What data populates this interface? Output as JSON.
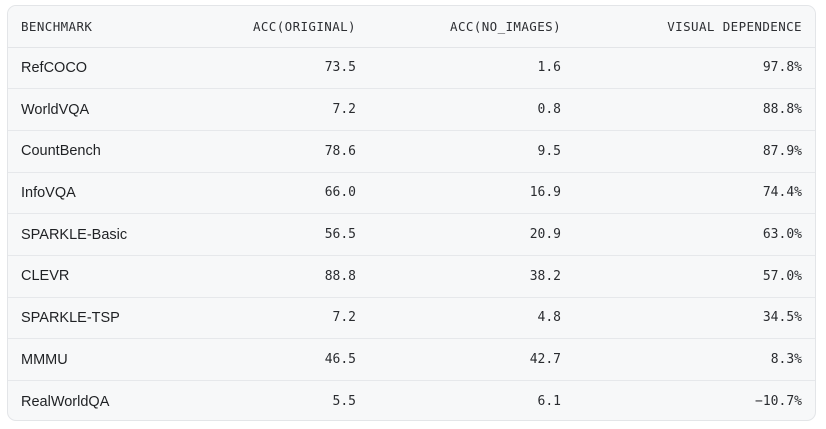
{
  "table": {
    "headers": {
      "benchmark": "BENCHMARK",
      "acc_original": "ACC(ORIGINAL)",
      "acc_no_images": "ACC(NO_IMAGES)",
      "visual_dependence": "VISUAL DEPENDENCE"
    },
    "rows": [
      {
        "benchmark": "RefCOCO",
        "acc_original": "73.5",
        "acc_no_images": "1.6",
        "visual_dependence": "97.8%",
        "tone": "high"
      },
      {
        "benchmark": "WorldVQA",
        "acc_original": "7.2",
        "acc_no_images": "0.8",
        "visual_dependence": "88.8%",
        "tone": "high"
      },
      {
        "benchmark": "CountBench",
        "acc_original": "78.6",
        "acc_no_images": "9.5",
        "visual_dependence": "87.9%",
        "tone": "high"
      },
      {
        "benchmark": "InfoVQA",
        "acc_original": "66.0",
        "acc_no_images": "16.9",
        "visual_dependence": "74.4%",
        "tone": "high"
      },
      {
        "benchmark": "SPARKLE-Basic",
        "acc_original": "56.5",
        "acc_no_images": "20.9",
        "visual_dependence": "63.0%",
        "tone": "mid"
      },
      {
        "benchmark": "CLEVR",
        "acc_original": "88.8",
        "acc_no_images": "38.2",
        "visual_dependence": "57.0%",
        "tone": "mid"
      },
      {
        "benchmark": "SPARKLE-TSP",
        "acc_original": "7.2",
        "acc_no_images": "4.8",
        "visual_dependence": "34.5%",
        "tone": "mid"
      },
      {
        "benchmark": "MMMU",
        "acc_original": "46.5",
        "acc_no_images": "42.7",
        "visual_dependence": "8.3%",
        "tone": "low"
      },
      {
        "benchmark": "RealWorldQA",
        "acc_original": "5.5",
        "acc_no_images": "6.1",
        "visual_dependence": "−10.7%",
        "tone": "low"
      }
    ]
  },
  "colors": {
    "high": "#2f7d4f",
    "mid": "#2a2c30",
    "low": "#b03a2e",
    "background": "#f7f8f9",
    "border": "#e3e5e8"
  }
}
